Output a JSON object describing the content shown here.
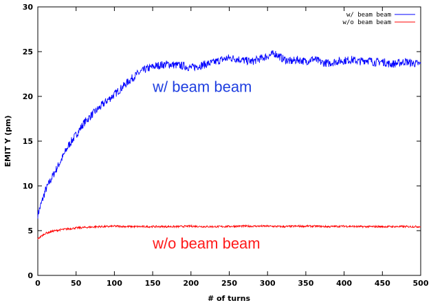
{
  "chart_data": {
    "type": "line",
    "title": "",
    "xlabel": "# of turns",
    "ylabel": "EMIT Y (pm)",
    "xlim": [
      0,
      500
    ],
    "ylim": [
      0,
      30
    ],
    "xticks": [
      0,
      50,
      100,
      150,
      200,
      250,
      300,
      350,
      400,
      450,
      500
    ],
    "yticks": [
      0,
      5,
      10,
      15,
      20,
      25,
      30
    ],
    "grid": false,
    "legend_position": "top-right",
    "series": [
      {
        "name": "w/ beam beam",
        "color": "#0000ff",
        "x": [
          0,
          10,
          20,
          30,
          40,
          50,
          60,
          70,
          80,
          90,
          100,
          110,
          120,
          130,
          140,
          150,
          160,
          170,
          180,
          190,
          200,
          210,
          220,
          230,
          240,
          250,
          260,
          270,
          280,
          290,
          300,
          310,
          320,
          330,
          340,
          350,
          360,
          370,
          380,
          390,
          400,
          410,
          420,
          430,
          440,
          450,
          460,
          470,
          480,
          490,
          500
        ],
        "y": [
          6.8,
          9.5,
          11.2,
          12.8,
          14.5,
          15.7,
          17.0,
          17.9,
          18.7,
          19.5,
          20.2,
          21.0,
          21.8,
          22.5,
          23.0,
          23.3,
          23.5,
          23.6,
          23.5,
          23.4,
          23.2,
          23.4,
          23.6,
          23.8,
          24.1,
          24.3,
          24.2,
          24.0,
          23.9,
          24.2,
          24.5,
          24.8,
          24.2,
          23.9,
          24.1,
          23.9,
          24.2,
          23.8,
          23.7,
          23.9,
          24.0,
          24.1,
          23.9,
          24.1,
          23.8,
          23.9,
          23.6,
          23.7,
          23.9,
          23.7,
          23.6
        ]
      },
      {
        "name": "w/o beam beam",
        "color": "#ff0000",
        "x": [
          0,
          10,
          20,
          30,
          40,
          50,
          60,
          70,
          80,
          90,
          100,
          120,
          140,
          160,
          180,
          200,
          220,
          240,
          260,
          280,
          300,
          320,
          340,
          360,
          380,
          400,
          420,
          440,
          460,
          480,
          500
        ],
        "y": [
          4.1,
          4.7,
          4.95,
          5.1,
          5.2,
          5.3,
          5.35,
          5.4,
          5.45,
          5.45,
          5.5,
          5.45,
          5.45,
          5.45,
          5.45,
          5.5,
          5.45,
          5.45,
          5.5,
          5.5,
          5.5,
          5.45,
          5.5,
          5.5,
          5.45,
          5.5,
          5.45,
          5.45,
          5.45,
          5.45,
          5.45
        ]
      }
    ],
    "annotations": [
      {
        "text": "w/ beam beam",
        "color": "#1f3fe0",
        "x": 150,
        "y": 20.5
      },
      {
        "text": "w/o beam beam",
        "color": "#ff1a1a",
        "x": 150,
        "y": 3.0
      }
    ]
  }
}
